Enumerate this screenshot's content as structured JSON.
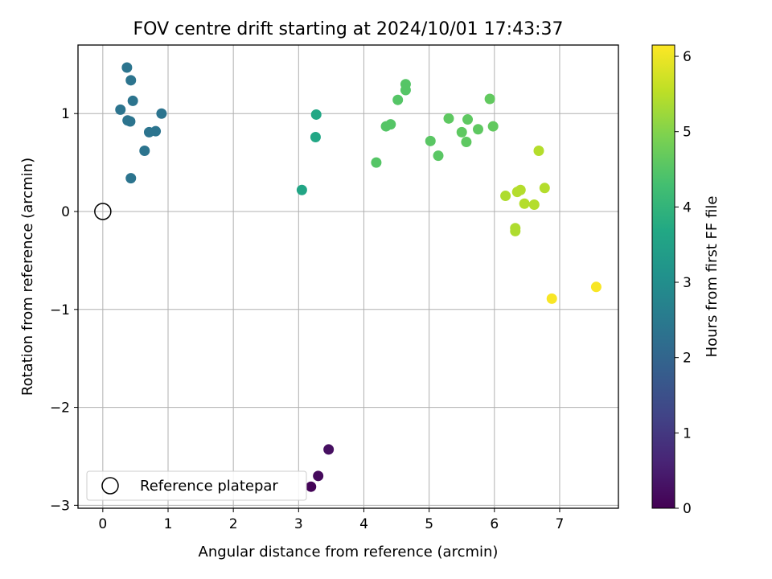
{
  "chart_data": {
    "type": "scatter",
    "title": "FOV centre drift starting at 2024/10/01 17:43:37",
    "xlabel": "Angular distance from reference (arcmin)",
    "ylabel": "Rotation from reference (arcmin)",
    "xlim": [
      -0.38,
      7.9
    ],
    "ylim": [
      -3.03,
      1.7
    ],
    "xticks": [
      0,
      1,
      2,
      3,
      4,
      5,
      6,
      7
    ],
    "yticks": [
      -3,
      -2,
      -1,
      0,
      1
    ],
    "xtick_labels": [
      "0",
      "1",
      "2",
      "3",
      "4",
      "5",
      "6",
      "7"
    ],
    "ytick_labels": [
      "−3",
      "−2",
      "−1",
      "0",
      "1"
    ],
    "grid": true,
    "colormap": "viridis",
    "colorbar": {
      "label": "Hours from first FF file",
      "range": [
        0,
        6.15
      ],
      "ticks": [
        0,
        1,
        2,
        3,
        4,
        5,
        6
      ],
      "tick_labels": [
        "0",
        "1",
        "2",
        "3",
        "4",
        "5",
        "6"
      ]
    },
    "reference": {
      "label": "Reference platepar",
      "x": 0,
      "y": 0
    },
    "legend_position": "lower-left",
    "points": [
      {
        "x": 3.19,
        "y": -2.81,
        "h": 0.05
      },
      {
        "x": 3.3,
        "y": -2.7,
        "h": 0.15
      },
      {
        "x": 3.46,
        "y": -2.43,
        "h": 0.25
      },
      {
        "x": 0.37,
        "y": 1.47,
        "h": 2.35
      },
      {
        "x": 0.43,
        "y": 1.34,
        "h": 2.35
      },
      {
        "x": 0.46,
        "y": 1.13,
        "h": 2.35
      },
      {
        "x": 0.27,
        "y": 1.04,
        "h": 2.35
      },
      {
        "x": 0.9,
        "y": 1.0,
        "h": 2.35
      },
      {
        "x": 0.38,
        "y": 0.93,
        "h": 2.35
      },
      {
        "x": 0.42,
        "y": 0.92,
        "h": 2.35
      },
      {
        "x": 0.71,
        "y": 0.81,
        "h": 2.35
      },
      {
        "x": 0.81,
        "y": 0.82,
        "h": 2.35
      },
      {
        "x": 0.64,
        "y": 0.62,
        "h": 2.35
      },
      {
        "x": 0.43,
        "y": 0.34,
        "h": 2.35
      },
      {
        "x": 3.05,
        "y": 0.22,
        "h": 3.6
      },
      {
        "x": 3.27,
        "y": 0.99,
        "h": 3.65
      },
      {
        "x": 3.26,
        "y": 0.76,
        "h": 3.65
      },
      {
        "x": 4.19,
        "y": 0.5,
        "h": 4.5
      },
      {
        "x": 4.34,
        "y": 0.87,
        "h": 4.5
      },
      {
        "x": 4.41,
        "y": 0.89,
        "h": 4.5
      },
      {
        "x": 4.52,
        "y": 1.14,
        "h": 4.5
      },
      {
        "x": 4.64,
        "y": 1.3,
        "h": 4.5
      },
      {
        "x": 4.64,
        "y": 1.24,
        "h": 4.5
      },
      {
        "x": 5.02,
        "y": 0.72,
        "h": 4.55
      },
      {
        "x": 5.14,
        "y": 0.57,
        "h": 4.55
      },
      {
        "x": 5.3,
        "y": 0.95,
        "h": 4.6
      },
      {
        "x": 5.5,
        "y": 0.81,
        "h": 4.6
      },
      {
        "x": 5.57,
        "y": 0.71,
        "h": 4.6
      },
      {
        "x": 5.59,
        "y": 0.94,
        "h": 4.6
      },
      {
        "x": 5.75,
        "y": 0.84,
        "h": 4.6
      },
      {
        "x": 5.93,
        "y": 1.15,
        "h": 4.65
      },
      {
        "x": 5.98,
        "y": 0.87,
        "h": 4.65
      },
      {
        "x": 6.17,
        "y": 0.16,
        "h": 5.4
      },
      {
        "x": 6.32,
        "y": -0.17,
        "h": 5.4
      },
      {
        "x": 6.32,
        "y": -0.2,
        "h": 5.4
      },
      {
        "x": 6.35,
        "y": 0.2,
        "h": 5.45
      },
      {
        "x": 6.4,
        "y": 0.22,
        "h": 5.45
      },
      {
        "x": 6.46,
        "y": 0.08,
        "h": 5.45
      },
      {
        "x": 6.61,
        "y": 0.07,
        "h": 5.45
      },
      {
        "x": 6.68,
        "y": 0.62,
        "h": 5.45
      },
      {
        "x": 6.77,
        "y": 0.24,
        "h": 5.45
      },
      {
        "x": 6.88,
        "y": -0.89,
        "h": 6.1
      },
      {
        "x": 7.56,
        "y": -0.77,
        "h": 6.1
      }
    ]
  }
}
